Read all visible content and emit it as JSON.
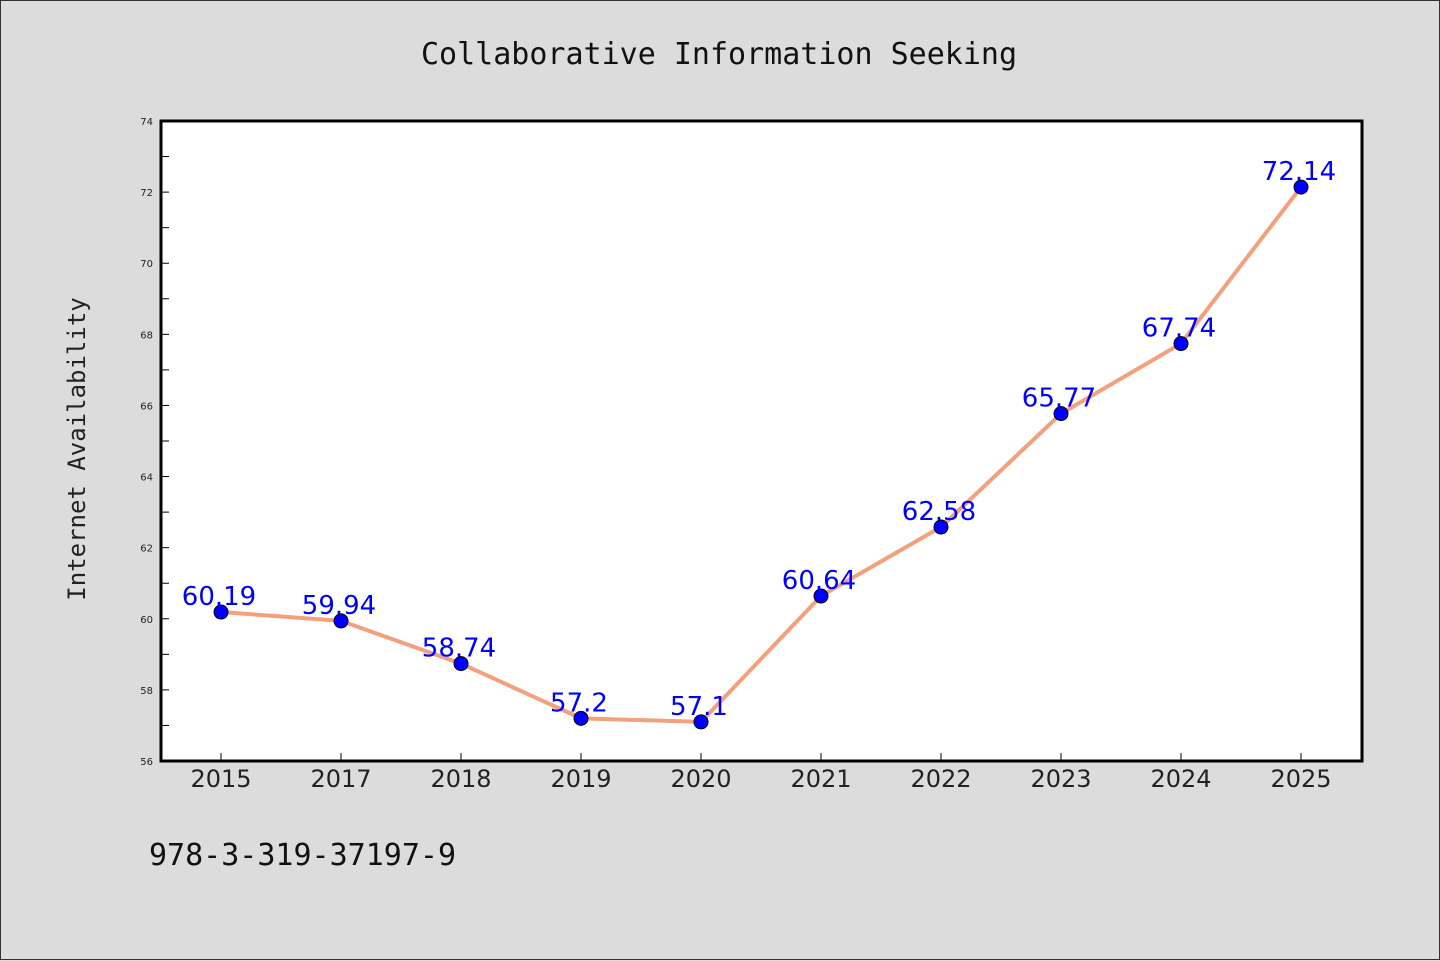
{
  "chart_data": {
    "type": "line",
    "title": "Collaborative Information Seeking",
    "xlabel": "",
    "ylabel": "Internet Availability",
    "categories": [
      "2015",
      "2017",
      "2018",
      "2019",
      "2020",
      "2021",
      "2022",
      "2023",
      "2024",
      "2025"
    ],
    "values": [
      60.19,
      59.94,
      58.74,
      57.2,
      57.1,
      60.64,
      62.58,
      65.77,
      67.74,
      72.14
    ],
    "data_labels": [
      "60.19",
      "59.94",
      "58.74",
      "57.2",
      "57.1",
      "60.64",
      "62.58",
      "65.77",
      "67.74",
      "72.14"
    ],
    "ylim": [
      56,
      74
    ],
    "yticks": [
      "56",
      "58",
      "60",
      "62",
      "64",
      "66",
      "68",
      "70",
      "72",
      "74"
    ],
    "grid": false,
    "legend": "none",
    "colors": {
      "line": "#f4a07c",
      "marker": "#0000ff",
      "data_label": "#0000ff",
      "plot_background": "#ffffff",
      "page_background": "#dcdcdc"
    }
  },
  "footer": {
    "isbn": "978-3-319-37197-9"
  }
}
